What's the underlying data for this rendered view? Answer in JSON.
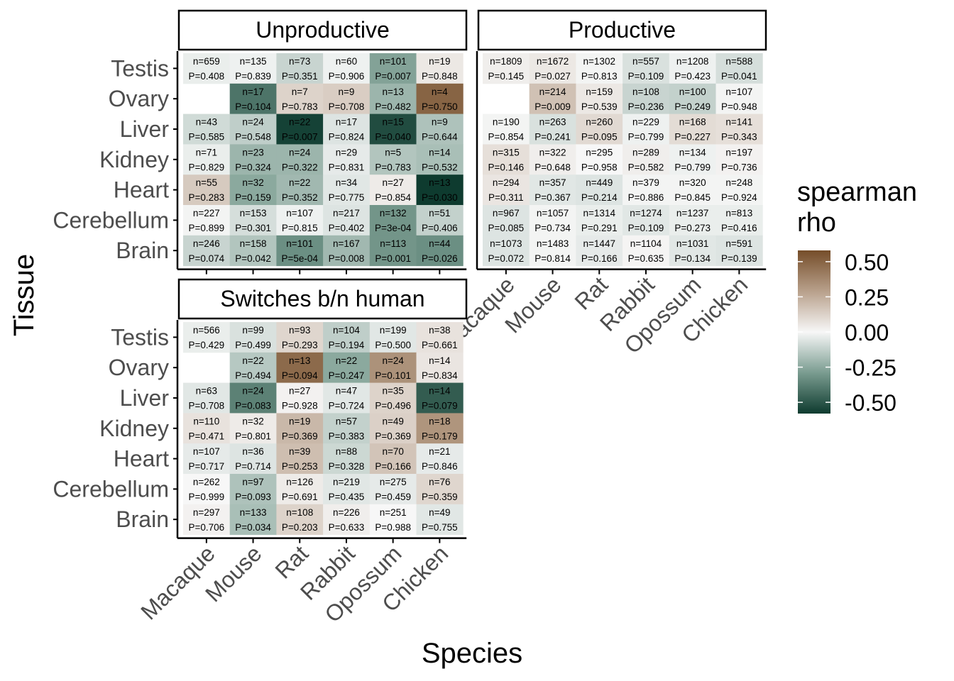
{
  "chart_data": {
    "type": "heatmap",
    "xlabel": "Species",
    "ylabel": "Tissue",
    "species": [
      "Macaque",
      "Mouse",
      "Rat",
      "Rabbit",
      "Opossum",
      "Chicken"
    ],
    "tissues": [
      "Testis",
      "Ovary",
      "Liver",
      "Kidney",
      "Heart",
      "Cerebellum",
      "Brain"
    ],
    "legend": {
      "title_lines": [
        "spearman",
        "rho"
      ],
      "ticks": [
        0.5,
        0.25,
        0.0,
        -0.25,
        -0.5
      ],
      "tick_labels": [
        "0.50",
        "0.25",
        "0.00",
        "-0.25",
        "-0.50"
      ],
      "range": [
        -0.58,
        0.58
      ],
      "placement": "right"
    },
    "colors": {
      "low": "#0e3b2f",
      "mid_low": "#7a9c90",
      "mid": "#f7f7f7",
      "mid_high": "#b8a08b",
      "high": "#754d29"
    },
    "panels": [
      {
        "title": "Unproductive",
        "cells": [
          [
            {
              "n": "n=659",
              "p": "P=0.408",
              "rho": -0.03
            },
            {
              "n": "n=135",
              "p": "P=0.839",
              "rho": -0.02
            },
            {
              "n": "n=73",
              "p": "P=0.351",
              "rho": -0.11
            },
            {
              "n": "n=60",
              "p": "P=0.906",
              "rho": -0.02
            },
            {
              "n": "n=101",
              "p": "P=0.007",
              "rho": -0.27
            },
            {
              "n": "n=19",
              "p": "P=0.848",
              "rho": 0.05
            }
          ],
          [
            null,
            {
              "n": "n=17",
              "p": "P=0.104",
              "rho": -0.41
            },
            {
              "n": "n=7",
              "p": "P=0.783",
              "rho": 0.12
            },
            {
              "n": "n=9",
              "p": "P=0.708",
              "rho": 0.14
            },
            {
              "n": "n=13",
              "p": "P=0.482",
              "rho": -0.21
            },
            {
              "n": "n=4",
              "p": "P=0.750",
              "rho": 0.5
            }
          ],
          [
            {
              "n": "n=43",
              "p": "P=0.585",
              "rho": -0.09
            },
            {
              "n": "n=24",
              "p": "P=0.548",
              "rho": -0.13
            },
            {
              "n": "n=22",
              "p": "P=0.007",
              "rho": -0.56
            },
            {
              "n": "n=17",
              "p": "P=0.824",
              "rho": -0.06
            },
            {
              "n": "n=15",
              "p": "P=0.040",
              "rho": -0.53
            },
            {
              "n": "n=9",
              "p": "P=0.644",
              "rho": -0.17
            }
          ],
          [
            {
              "n": "n=71",
              "p": "P=0.829",
              "rho": -0.03
            },
            {
              "n": "n=23",
              "p": "P=0.324",
              "rho": -0.21
            },
            {
              "n": "n=24",
              "p": "P=0.322",
              "rho": -0.21
            },
            {
              "n": "n=29",
              "p": "P=0.831",
              "rho": -0.04
            },
            {
              "n": "n=5",
              "p": "P=0.783",
              "rho": -0.16
            },
            {
              "n": "n=14",
              "p": "P=0.532",
              "rho": -0.18
            }
          ],
          [
            {
              "n": "n=55",
              "p": "P=0.283",
              "rho": 0.15
            },
            {
              "n": "n=32",
              "p": "P=0.159",
              "rho": -0.25
            },
            {
              "n": "n=22",
              "p": "P=0.352",
              "rho": -0.2
            },
            {
              "n": "n=34",
              "p": "P=0.775",
              "rho": -0.05
            },
            {
              "n": "n=27",
              "p": "P=0.854",
              "rho": 0.04
            },
            {
              "n": "n=13",
              "p": "P=0.030",
              "rho": -0.6
            }
          ],
          [
            {
              "n": "n=227",
              "p": "P=0.899",
              "rho": -0.01
            },
            {
              "n": "n=153",
              "p": "P=0.301",
              "rho": -0.08
            },
            {
              "n": "n=107",
              "p": "P=0.815",
              "rho": -0.02
            },
            {
              "n": "n=217",
              "p": "P=0.402",
              "rho": -0.06
            },
            {
              "n": "n=132",
              "p": "P=3e-04",
              "rho": -0.31
            },
            {
              "n": "n=51",
              "p": "P=0.406",
              "rho": -0.12
            }
          ],
          [
            {
              "n": "n=246",
              "p": "P=0.074",
              "rho": -0.11
            },
            {
              "n": "n=158",
              "p": "P=0.042",
              "rho": -0.16
            },
            {
              "n": "n=101",
              "p": "P=5e-04",
              "rho": -0.33
            },
            {
              "n": "n=167",
              "p": "P=0.008",
              "rho": -0.2
            },
            {
              "n": "n=113",
              "p": "P=0.001",
              "rho": -0.31
            },
            {
              "n": "n=44",
              "p": "P=0.026",
              "rho": -0.33
            }
          ]
        ]
      },
      {
        "title": "Productive",
        "cells": [
          [
            {
              "n": "n=1809",
              "p": "P=0.145",
              "rho": 0.03
            },
            {
              "n": "n=1672",
              "p": "P=0.027",
              "rho": 0.05
            },
            {
              "n": "n=1302",
              "p": "P=0.813",
              "rho": -0.01
            },
            {
              "n": "n=557",
              "p": "P=0.109",
              "rho": -0.07
            },
            {
              "n": "n=1208",
              "p": "P=0.423",
              "rho": -0.02
            },
            {
              "n": "n=588",
              "p": "P=0.041",
              "rho": -0.08
            }
          ],
          [
            null,
            {
              "n": "n=214",
              "p": "P=0.009",
              "rho": 0.18
            },
            {
              "n": "n=159",
              "p": "P=0.539",
              "rho": 0.05
            },
            {
              "n": "n=108",
              "p": "P=0.236",
              "rho": -0.11
            },
            {
              "n": "n=100",
              "p": "P=0.249",
              "rho": -0.12
            },
            {
              "n": "n=107",
              "p": "P=0.948",
              "rho": -0.01
            }
          ],
          [
            {
              "n": "n=190",
              "p": "P=0.854",
              "rho": -0.01
            },
            {
              "n": "n=263",
              "p": "P=0.241",
              "rho": -0.07
            },
            {
              "n": "n=260",
              "p": "P=0.095",
              "rho": 0.1
            },
            {
              "n": "n=229",
              "p": "P=0.799",
              "rho": -0.02
            },
            {
              "n": "n=168",
              "p": "P=0.227",
              "rho": 0.09
            },
            {
              "n": "n=141",
              "p": "P=0.343",
              "rho": 0.08
            }
          ],
          [
            {
              "n": "n=315",
              "p": "P=0.146",
              "rho": 0.08
            },
            {
              "n": "n=322",
              "p": "P=0.648",
              "rho": 0.03
            },
            {
              "n": "n=295",
              "p": "P=0.958",
              "rho": 0.0
            },
            {
              "n": "n=289",
              "p": "P=0.582",
              "rho": 0.03
            },
            {
              "n": "n=134",
              "p": "P=0.799",
              "rho": -0.02
            },
            {
              "n": "n=197",
              "p": "P=0.736",
              "rho": 0.02
            }
          ],
          [
            {
              "n": "n=294",
              "p": "P=0.311",
              "rho": 0.06
            },
            {
              "n": "n=357",
              "p": "P=0.367",
              "rho": -0.05
            },
            {
              "n": "n=449",
              "p": "P=0.214",
              "rho": -0.06
            },
            {
              "n": "n=379",
              "p": "P=0.886",
              "rho": -0.01
            },
            {
              "n": "n=320",
              "p": "P=0.845",
              "rho": -0.01
            },
            {
              "n": "n=248",
              "p": "P=0.924",
              "rho": -0.01
            }
          ],
          [
            {
              "n": "n=967",
              "p": "P=0.085",
              "rho": -0.06
            },
            {
              "n": "n=1057",
              "p": "P=0.734",
              "rho": -0.01
            },
            {
              "n": "n=1314",
              "p": "P=0.291",
              "rho": -0.03
            },
            {
              "n": "n=1274",
              "p": "P=0.109",
              "rho": -0.05
            },
            {
              "n": "n=1237",
              "p": "P=0.273",
              "rho": -0.03
            },
            {
              "n": "n=813",
              "p": "P=0.416",
              "rho": -0.03
            }
          ],
          [
            {
              "n": "n=1073",
              "p": "P=0.072",
              "rho": -0.06
            },
            {
              "n": "n=1483",
              "p": "P=0.814",
              "rho": -0.01
            },
            {
              "n": "n=1447",
              "p": "P=0.166",
              "rho": -0.04
            },
            {
              "n": "n=1104",
              "p": "P=0.635",
              "rho": 0.01
            },
            {
              "n": "n=1031",
              "p": "P=0.134",
              "rho": -0.05
            },
            {
              "n": "n=591",
              "p": "P=0.139",
              "rho": -0.06
            }
          ]
        ]
      },
      {
        "title": "Switches b/n human",
        "cells": [
          [
            {
              "n": "n=566",
              "p": "P=0.429",
              "rho": -0.03
            },
            {
              "n": "n=99",
              "p": "P=0.499",
              "rho": -0.07
            },
            {
              "n": "n=93",
              "p": "P=0.293",
              "rho": 0.11
            },
            {
              "n": "n=104",
              "p": "P=0.194",
              "rho": -0.13
            },
            {
              "n": "n=199",
              "p": "P=0.500",
              "rho": -0.05
            },
            {
              "n": "n=38",
              "p": "P=0.661",
              "rho": 0.07
            }
          ],
          [
            null,
            {
              "n": "n=22",
              "p": "P=0.494",
              "rho": -0.15
            },
            {
              "n": "n=13",
              "p": "P=0.094",
              "rho": 0.48
            },
            {
              "n": "n=22",
              "p": "P=0.247",
              "rho": -0.25
            },
            {
              "n": "n=24",
              "p": "P=0.101",
              "rho": 0.34
            },
            {
              "n": "n=14",
              "p": "P=0.834",
              "rho": 0.06
            }
          ],
          [
            {
              "n": "n=63",
              "p": "P=0.708",
              "rho": -0.05
            },
            {
              "n": "n=24",
              "p": "P=0.083",
              "rho": -0.37
            },
            {
              "n": "n=27",
              "p": "P=0.928",
              "rho": 0.02
            },
            {
              "n": "n=47",
              "p": "P=0.724",
              "rho": -0.05
            },
            {
              "n": "n=35",
              "p": "P=0.496",
              "rho": 0.12
            },
            {
              "n": "n=14",
              "p": "P=0.079",
              "rho": -0.48
            }
          ],
          [
            {
              "n": "n=110",
              "p": "P=0.471",
              "rho": 0.07
            },
            {
              "n": "n=32",
              "p": "P=0.801",
              "rho": 0.04
            },
            {
              "n": "n=19",
              "p": "P=0.369",
              "rho": 0.21
            },
            {
              "n": "n=57",
              "p": "P=0.383",
              "rho": -0.12
            },
            {
              "n": "n=49",
              "p": "P=0.369",
              "rho": 0.13
            },
            {
              "n": "n=18",
              "p": "P=0.179",
              "rho": 0.33
            }
          ],
          [
            {
              "n": "n=107",
              "p": "P=0.717",
              "rho": -0.04
            },
            {
              "n": "n=36",
              "p": "P=0.714",
              "rho": -0.06
            },
            {
              "n": "n=39",
              "p": "P=0.253",
              "rho": 0.19
            },
            {
              "n": "n=88",
              "p": "P=0.328",
              "rho": -0.1
            },
            {
              "n": "n=70",
              "p": "P=0.166",
              "rho": 0.17
            },
            {
              "n": "n=21",
              "p": "P=0.846",
              "rho": -0.04
            }
          ],
          [
            {
              "n": "n=262",
              "p": "P=0.999",
              "rho": 0.0
            },
            {
              "n": "n=97",
              "p": "P=0.093",
              "rho": -0.17
            },
            {
              "n": "n=126",
              "p": "P=0.691",
              "rho": 0.04
            },
            {
              "n": "n=219",
              "p": "P=0.435",
              "rho": -0.05
            },
            {
              "n": "n=275",
              "p": "P=0.459",
              "rho": -0.04
            },
            {
              "n": "n=76",
              "p": "P=0.359",
              "rho": 0.11
            }
          ],
          [
            {
              "n": "n=297",
              "p": "P=0.706",
              "rho": 0.02
            },
            {
              "n": "n=133",
              "p": "P=0.034",
              "rho": -0.18
            },
            {
              "n": "n=108",
              "p": "P=0.203",
              "rho": 0.12
            },
            {
              "n": "n=226",
              "p": "P=0.633",
              "rho": 0.03
            },
            {
              "n": "n=251",
              "p": "P=0.988",
              "rho": 0.0
            },
            {
              "n": "n=49",
              "p": "P=0.755",
              "rho": -0.05
            }
          ]
        ]
      }
    ]
  }
}
